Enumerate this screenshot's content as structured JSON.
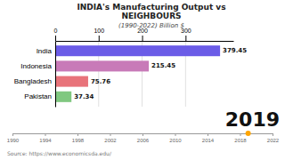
{
  "chart_data": [
    {
      "type": "bar",
      "orientation": "horizontal",
      "title": "INDIA's Manufacturing Output vs\nNEIGHBOURS",
      "subtitle": "(1990-2022) Billion $",
      "annotations": [
        "2019",
        "Source: https://www.economicsda.edu/"
      ],
      "categories": [
        "India",
        "Indonesia",
        "Bangladesh",
        "Pakistan"
      ],
      "values": [
        379.45,
        215.45,
        75.76,
        37.34
      ],
      "colors": [
        "#6B5CE7",
        "#C87AB8",
        "#E8737A",
        "#80C880"
      ],
      "xlim": [
        0,
        410
      ],
      "xticks": [
        0,
        100,
        200,
        300
      ],
      "grid": true,
      "data_labels": true
    },
    {
      "type": "timeline",
      "xlim": [
        1990,
        2022
      ],
      "xticks": [
        1990,
        1994,
        1998,
        2002,
        2006,
        2010,
        2014,
        2018,
        2022
      ],
      "x": [
        2019
      ],
      "color": "#FFA500"
    }
  ]
}
